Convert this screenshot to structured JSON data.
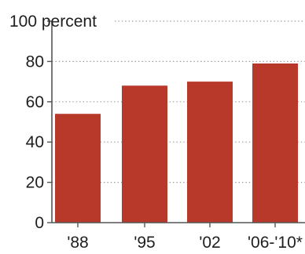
{
  "chart_data": {
    "type": "bar",
    "categories": [
      "'88",
      "'95",
      "'02",
      "'06-'10*"
    ],
    "values": [
      54,
      68,
      70,
      79
    ],
    "y_ticks": [
      {
        "value": 0,
        "label": "0"
      },
      {
        "value": 20,
        "label": "20"
      },
      {
        "value": 40,
        "label": "40"
      },
      {
        "value": 60,
        "label": "60"
      },
      {
        "value": 80,
        "label": "80"
      },
      {
        "value": 100,
        "label": "100 percent"
      }
    ],
    "ylim": [
      0,
      100
    ],
    "grid": true,
    "colors": {
      "bar": "#b8382a",
      "axis": "#555555",
      "grid": "#9a9a9a",
      "text": "#1e1e1e"
    }
  }
}
